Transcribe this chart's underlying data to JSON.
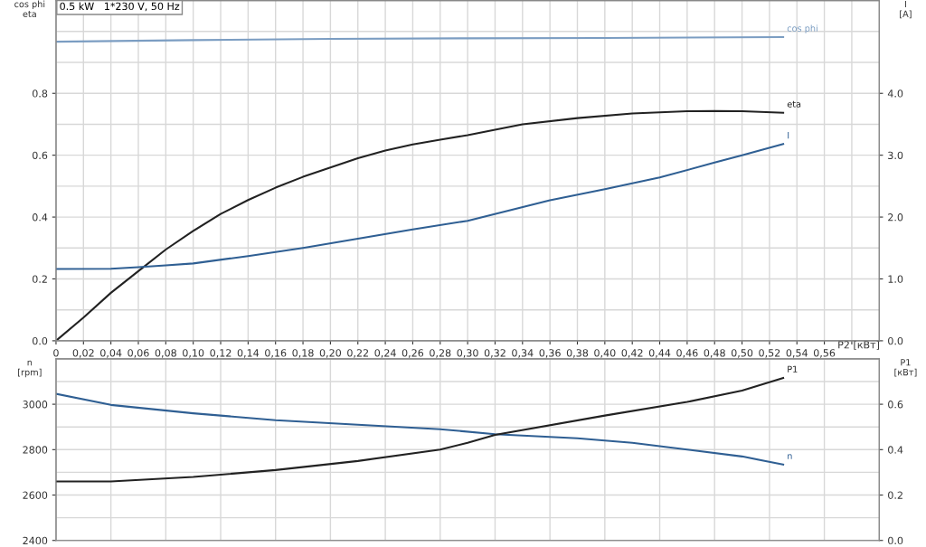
{
  "chart_data": [
    {
      "type": "line",
      "title": "0.5 kW   1*230 V, 50 Hz",
      "xlabel": "P2 [кВт]",
      "ylabel": "cos phi\neta",
      "y2label": "I\n[A]",
      "xlim": [
        0,
        0.6
      ],
      "xticks": [
        {
          "value": 0,
          "label": "0"
        },
        {
          "value": 0.02,
          "label": "0,02"
        },
        {
          "value": 0.04,
          "label": "0,04"
        },
        {
          "value": 0.06,
          "label": "0,06"
        },
        {
          "value": 0.08,
          "label": "0,08"
        },
        {
          "value": 0.1,
          "label": "0,10"
        },
        {
          "value": 0.12,
          "label": "0,12"
        },
        {
          "value": 0.14,
          "label": "0,14"
        },
        {
          "value": 0.16,
          "label": "0,16"
        },
        {
          "value": 0.18,
          "label": "0,18"
        },
        {
          "value": 0.2,
          "label": "0,20"
        },
        {
          "value": 0.22,
          "label": "0,22"
        },
        {
          "value": 0.24,
          "label": "0,24"
        },
        {
          "value": 0.26,
          "label": "0,26"
        },
        {
          "value": 0.28,
          "label": "0,28"
        },
        {
          "value": 0.3,
          "label": "0,30"
        },
        {
          "value": 0.32,
          "label": "0,32"
        },
        {
          "value": 0.34,
          "label": "0,34"
        },
        {
          "value": 0.36,
          "label": "0,36"
        },
        {
          "value": 0.38,
          "label": "0,38"
        },
        {
          "value": 0.4,
          "label": "0,40"
        },
        {
          "value": 0.42,
          "label": "0,42"
        },
        {
          "value": 0.44,
          "label": "0,44"
        },
        {
          "value": 0.46,
          "label": "0,46"
        },
        {
          "value": 0.48,
          "label": "0,48"
        },
        {
          "value": 0.5,
          "label": "0,50"
        },
        {
          "value": 0.52,
          "label": "0,52"
        },
        {
          "value": 0.54,
          "label": "0,54"
        },
        {
          "value": 0.56,
          "label": "0,56"
        },
        {
          "value": 0.58,
          "label": null
        }
      ],
      "ylim": [
        0,
        1.1
      ],
      "yticks": [
        {
          "value": 0,
          "label": "0.0"
        },
        {
          "value": 0.1,
          "label": null
        },
        {
          "value": 0.2,
          "label": "0.2"
        },
        {
          "value": 0.3,
          "label": null
        },
        {
          "value": 0.4,
          "label": "0.4"
        },
        {
          "value": 0.5,
          "label": null
        },
        {
          "value": 0.6,
          "label": "0.6"
        },
        {
          "value": 0.7,
          "label": null
        },
        {
          "value": 0.8,
          "label": "0.8"
        },
        {
          "value": 0.9,
          "label": null
        },
        {
          "value": 1.0,
          "label": null
        }
      ],
      "y2lim": [
        0,
        5.5
      ],
      "y2ticks": [
        {
          "value": 0,
          "label": "0.0"
        },
        {
          "value": 1,
          "label": "1.0"
        },
        {
          "value": 2,
          "label": "2.0"
        },
        {
          "value": 3,
          "label": "3.0"
        },
        {
          "value": 4,
          "label": "4.0"
        }
      ],
      "grid": true,
      "line_style": "solid",
      "marker": "none",
      "series": [
        {
          "name": "cos phi",
          "color": "#7b9dc2",
          "x": [
            0,
            0.1,
            0.2,
            0.3,
            0.4,
            0.53
          ],
          "values": [
            0.967,
            0.972,
            0.976,
            0.978,
            0.979,
            0.982
          ]
        },
        {
          "name": "eta",
          "color": "#222222",
          "x": [
            0,
            0.02,
            0.04,
            0.06,
            0.08,
            0.1,
            0.12,
            0.14,
            0.16,
            0.18,
            0.2,
            0.22,
            0.24,
            0.26,
            0.28,
            0.3,
            0.34,
            0.38,
            0.42,
            0.46,
            0.48,
            0.5,
            0.53
          ],
          "values": [
            0,
            0.075,
            0.155,
            0.225,
            0.295,
            0.355,
            0.41,
            0.455,
            0.495,
            0.53,
            0.56,
            0.59,
            0.615,
            0.635,
            0.65,
            0.665,
            0.7,
            0.72,
            0.735,
            0.742,
            0.743,
            0.742,
            0.737
          ]
        },
        {
          "name": "I",
          "color": "#2f5f93",
          "axis": "y2",
          "x": [
            0,
            0.04,
            0.06,
            0.08,
            0.1,
            0.14,
            0.18,
            0.22,
            0.26,
            0.3,
            0.36,
            0.4,
            0.44,
            0.48,
            0.5,
            0.53
          ],
          "values": [
            1.16,
            1.165,
            1.19,
            1.22,
            1.25,
            1.37,
            1.5,
            1.65,
            1.8,
            1.94,
            2.27,
            2.45,
            2.64,
            2.88,
            3.0,
            3.18
          ]
        }
      ]
    },
    {
      "type": "line",
      "ylabel": "n\n[rpm]",
      "y2label": "P1\n[кВт]",
      "tick_labels": "y",
      "xlim": [
        0,
        0.6
      ],
      "xticks": [
        {
          "value": 0,
          "label": null
        },
        {
          "value": 0.04,
          "label": null
        },
        {
          "value": 0.08,
          "label": null
        },
        {
          "value": 0.12,
          "label": null
        },
        {
          "value": 0.16,
          "label": null
        },
        {
          "value": 0.2,
          "label": null
        },
        {
          "value": 0.24,
          "label": null
        },
        {
          "value": 0.28,
          "label": null
        },
        {
          "value": 0.32,
          "label": null
        },
        {
          "value": 0.36,
          "label": null
        },
        {
          "value": 0.4,
          "label": null
        },
        {
          "value": 0.44,
          "label": null
        },
        {
          "value": 0.48,
          "label": null
        },
        {
          "value": 0.52,
          "label": null
        },
        {
          "value": 0.56,
          "label": null
        }
      ],
      "ylim": [
        2400,
        3200
      ],
      "yticks": [
        2400,
        {
          "value": 2500,
          "label": null
        },
        2600,
        {
          "value": 2700,
          "label": null
        },
        2800,
        {
          "value": 2900,
          "label": null
        },
        3000,
        {
          "value": 3100,
          "label": null
        },
        {
          "value": 3200,
          "label": null
        }
      ],
      "y2lim": [
        0,
        0.8
      ],
      "y2ticks": [
        {
          "value": 0,
          "label": "0.0"
        },
        {
          "value": 0.2,
          "label": "0.2"
        },
        {
          "value": 0.4,
          "label": "0.4"
        },
        {
          "value": 0.6,
          "label": "0.6"
        }
      ],
      "grid": true,
      "line_style": "solid",
      "marker": "none",
      "series": [
        {
          "name": "n",
          "color": "#2f5f93",
          "x": [
            0,
            0.04,
            0.1,
            0.16,
            0.22,
            0.28,
            0.32,
            0.38,
            0.42,
            0.46,
            0.5,
            0.53
          ],
          "values": [
            3046,
            2997,
            2960,
            2930,
            2910,
            2890,
            2868,
            2850,
            2830,
            2800,
            2770,
            2734
          ]
        },
        {
          "name": "P1",
          "color": "#222222",
          "axis": "y2",
          "x": [
            0,
            0.04,
            0.1,
            0.16,
            0.22,
            0.28,
            0.3,
            0.32,
            0.4,
            0.46,
            0.5,
            0.53
          ],
          "values": [
            0.26,
            0.26,
            0.28,
            0.31,
            0.35,
            0.4,
            0.43,
            0.465,
            0.55,
            0.61,
            0.66,
            0.716
          ]
        }
      ]
    }
  ]
}
